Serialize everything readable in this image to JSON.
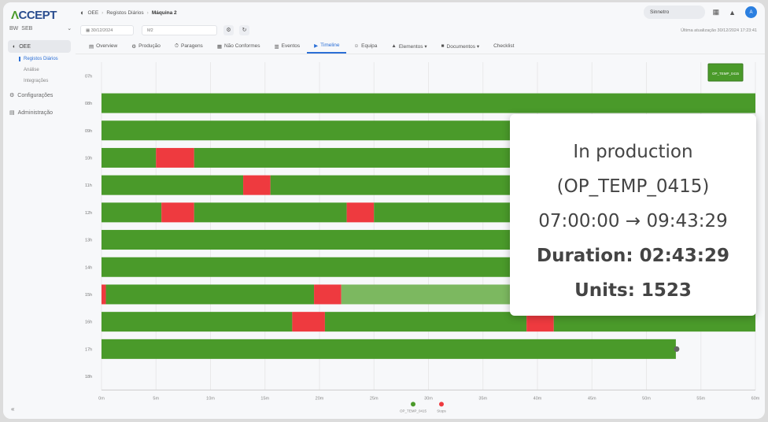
{
  "app": {
    "logo_prefix": "Λ",
    "logo_main": "CCEPT"
  },
  "sidebar": {
    "plant_label": "BW",
    "plant_value": "SEB",
    "section": "OEE",
    "subitems": [
      "Registos Diários",
      "Análise",
      "Integrações"
    ],
    "items": [
      "Configurações",
      "Administração"
    ],
    "collapse_symbol": "«"
  },
  "breadcrumb": [
    "OEE",
    "Registos Diários",
    "Máquina 2"
  ],
  "search": {
    "value": "Sinnetro"
  },
  "filters": {
    "date": "30/12/2024",
    "machine": "M2"
  },
  "updated_text": "Última atualização 30/12/2024 17:23:41",
  "tabs": [
    {
      "label": "Overview",
      "icon": "▤"
    },
    {
      "label": "Produção",
      "icon": "⚙"
    },
    {
      "label": "Paragens",
      "icon": "⏱"
    },
    {
      "label": "Não Conformes",
      "icon": "▦"
    },
    {
      "label": "Eventos",
      "icon": "▥"
    },
    {
      "label": "Timeline",
      "icon": "▶"
    },
    {
      "label": "Equipa",
      "icon": "☺"
    },
    {
      "label": "Elementos ▾",
      "icon": "▲"
    },
    {
      "label": "Documentos ▾",
      "icon": "■"
    },
    {
      "label": "Checklist",
      "icon": ""
    }
  ],
  "active_tab": 5,
  "chart_data": {
    "type": "timeline",
    "rows": [
      "07h",
      "08h",
      "09h",
      "10h",
      "11h",
      "12h",
      "13h",
      "14h",
      "15h",
      "16h",
      "17h",
      "18h"
    ],
    "x_ticks": [
      "0m",
      "5m",
      "10m",
      "15m",
      "20m",
      "25m",
      "30m",
      "35m",
      "40m",
      "45m",
      "50m",
      "55m",
      "60m"
    ],
    "xlim": [
      0,
      60
    ],
    "colors": {
      "production": "#4a9a2a",
      "stop": "#ee3a3f",
      "highlight": "#7cb860"
    },
    "segments": [
      {
        "row": 1,
        "start": 0,
        "end": 60,
        "state": "production"
      },
      {
        "row": 2,
        "start": 0,
        "end": 60,
        "state": "production"
      },
      {
        "row": 3,
        "start": 0,
        "end": 5,
        "state": "production"
      },
      {
        "row": 3,
        "start": 5,
        "end": 8.5,
        "state": "stop"
      },
      {
        "row": 3,
        "start": 8.5,
        "end": 60,
        "state": "production"
      },
      {
        "row": 4,
        "start": 0,
        "end": 13,
        "state": "production"
      },
      {
        "row": 4,
        "start": 13,
        "end": 15.5,
        "state": "stop"
      },
      {
        "row": 4,
        "start": 15.5,
        "end": 60,
        "state": "production"
      },
      {
        "row": 5,
        "start": 0,
        "end": 5.5,
        "state": "production"
      },
      {
        "row": 5,
        "start": 5.5,
        "end": 8.5,
        "state": "stop"
      },
      {
        "row": 5,
        "start": 8.5,
        "end": 22.5,
        "state": "production"
      },
      {
        "row": 5,
        "start": 22.5,
        "end": 25,
        "state": "stop"
      },
      {
        "row": 5,
        "start": 25,
        "end": 60,
        "state": "production"
      },
      {
        "row": 6,
        "start": 0,
        "end": 60,
        "state": "production"
      },
      {
        "row": 7,
        "start": 0,
        "end": 60,
        "state": "production"
      },
      {
        "row": 8,
        "start": 0,
        "end": 0.4,
        "state": "stop"
      },
      {
        "row": 8,
        "start": 0.4,
        "end": 19.5,
        "state": "production"
      },
      {
        "row": 8,
        "start": 19.5,
        "end": 22,
        "state": "stop"
      },
      {
        "row": 8,
        "start": 22,
        "end": 60,
        "state": "highlight"
      },
      {
        "row": 9,
        "start": 0,
        "end": 17.5,
        "state": "production"
      },
      {
        "row": 9,
        "start": 17.5,
        "end": 20.5,
        "state": "stop"
      },
      {
        "row": 9,
        "start": 20.5,
        "end": 39,
        "state": "production"
      },
      {
        "row": 9,
        "start": 39,
        "end": 41.5,
        "state": "stop"
      },
      {
        "row": 9,
        "start": 41.5,
        "end": 60,
        "state": "production"
      },
      {
        "row": 10,
        "start": 0,
        "end": 52.7,
        "state": "production"
      }
    ],
    "marker": {
      "row": 10,
      "at": 52.7
    },
    "badge": "OP_TEMP_0415",
    "legend": [
      {
        "label": "OP_TEMP_0415",
        "color": "#4a9a2a"
      },
      {
        "label": "Stops",
        "color": "#ee3a3f"
      }
    ]
  },
  "tooltip": {
    "title": "In production",
    "op": "(OP_TEMP_0415)",
    "range": "07:00:00 → 09:43:29",
    "duration": "Duration: 02:43:29",
    "units": "Units: 1523"
  }
}
